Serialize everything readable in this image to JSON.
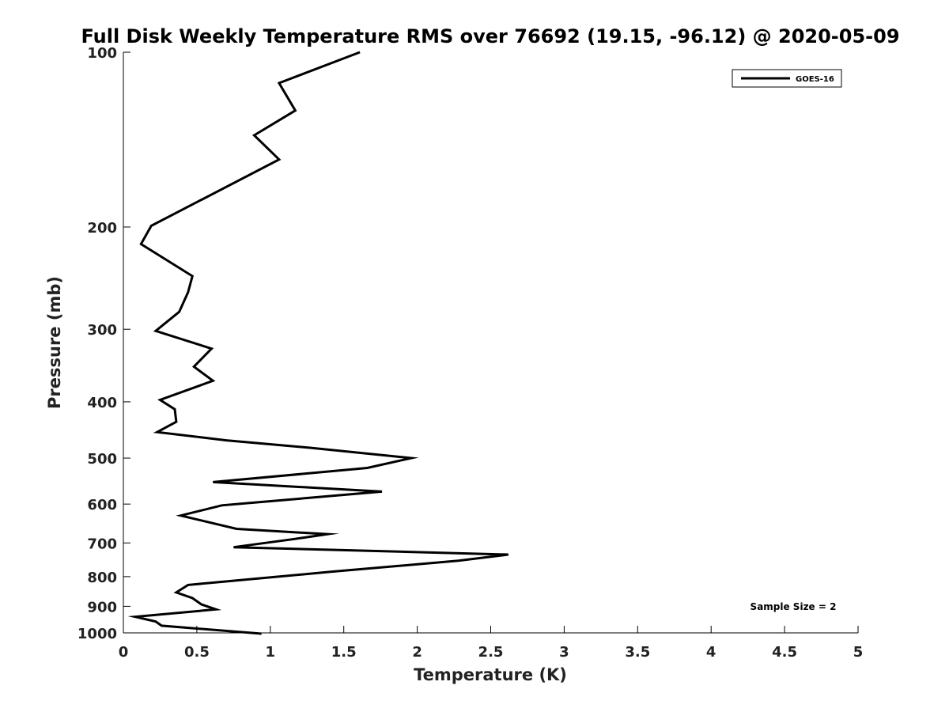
{
  "chart_data": {
    "type": "line",
    "title": "Full Disk Weekly Temperature RMS over 76692 (19.15, -96.12) @ 2020-05-09",
    "xlabel": "Temperature (K)",
    "ylabel": "Pressure (mb)",
    "xlim": [
      0,
      5
    ],
    "ylim": [
      100,
      1000
    ],
    "y_scale": "log",
    "y_reversed": true,
    "x_ticks": [
      0,
      0.5,
      1,
      1.5,
      2,
      2.5,
      3,
      3.5,
      4,
      4.5,
      5
    ],
    "x_tick_labels": [
      "0",
      "0.5",
      "1",
      "1.5",
      "2",
      "2.5",
      "3",
      "3.5",
      "4",
      "4.5",
      "5"
    ],
    "y_ticks": [
      100,
      200,
      300,
      400,
      500,
      600,
      700,
      800,
      900,
      1000
    ],
    "y_tick_labels": [
      "100",
      "200",
      "300",
      "400",
      "500",
      "600",
      "700",
      "800",
      "900",
      "1000"
    ],
    "grid": false,
    "legend_position": "top-right",
    "annotation": "Sample Size = 2",
    "series": [
      {
        "name": "GOES-16",
        "color": "#000000",
        "x": [
          1.61,
          1.06,
          1.17,
          0.89,
          1.06,
          0.19,
          0.12,
          0.47,
          0.44,
          0.38,
          0.22,
          0.6,
          0.48,
          0.61,
          0.25,
          0.35,
          0.36,
          0.23,
          0.7,
          1.27,
          1.96,
          1.66,
          0.61,
          1.76,
          0.67,
          0.39,
          0.77,
          1.39,
          1.15,
          0.75,
          2.62,
          2.28,
          1.41,
          0.44,
          0.36,
          0.47,
          0.53,
          0.63,
          0.08,
          0.22,
          0.26,
          0.94
        ],
        "y": [
          100,
          113,
          126,
          139,
          153,
          199,
          214,
          243,
          259,
          280,
          302,
          324,
          348,
          368,
          397,
          412,
          433,
          451,
          466,
          480,
          500,
          520,
          550,
          571,
          603,
          628,
          662,
          676,
          690,
          712,
          733,
          751,
          785,
          827,
          852,
          871,
          893,
          911,
          938,
          956,
          972,
          1003
        ]
      }
    ]
  }
}
